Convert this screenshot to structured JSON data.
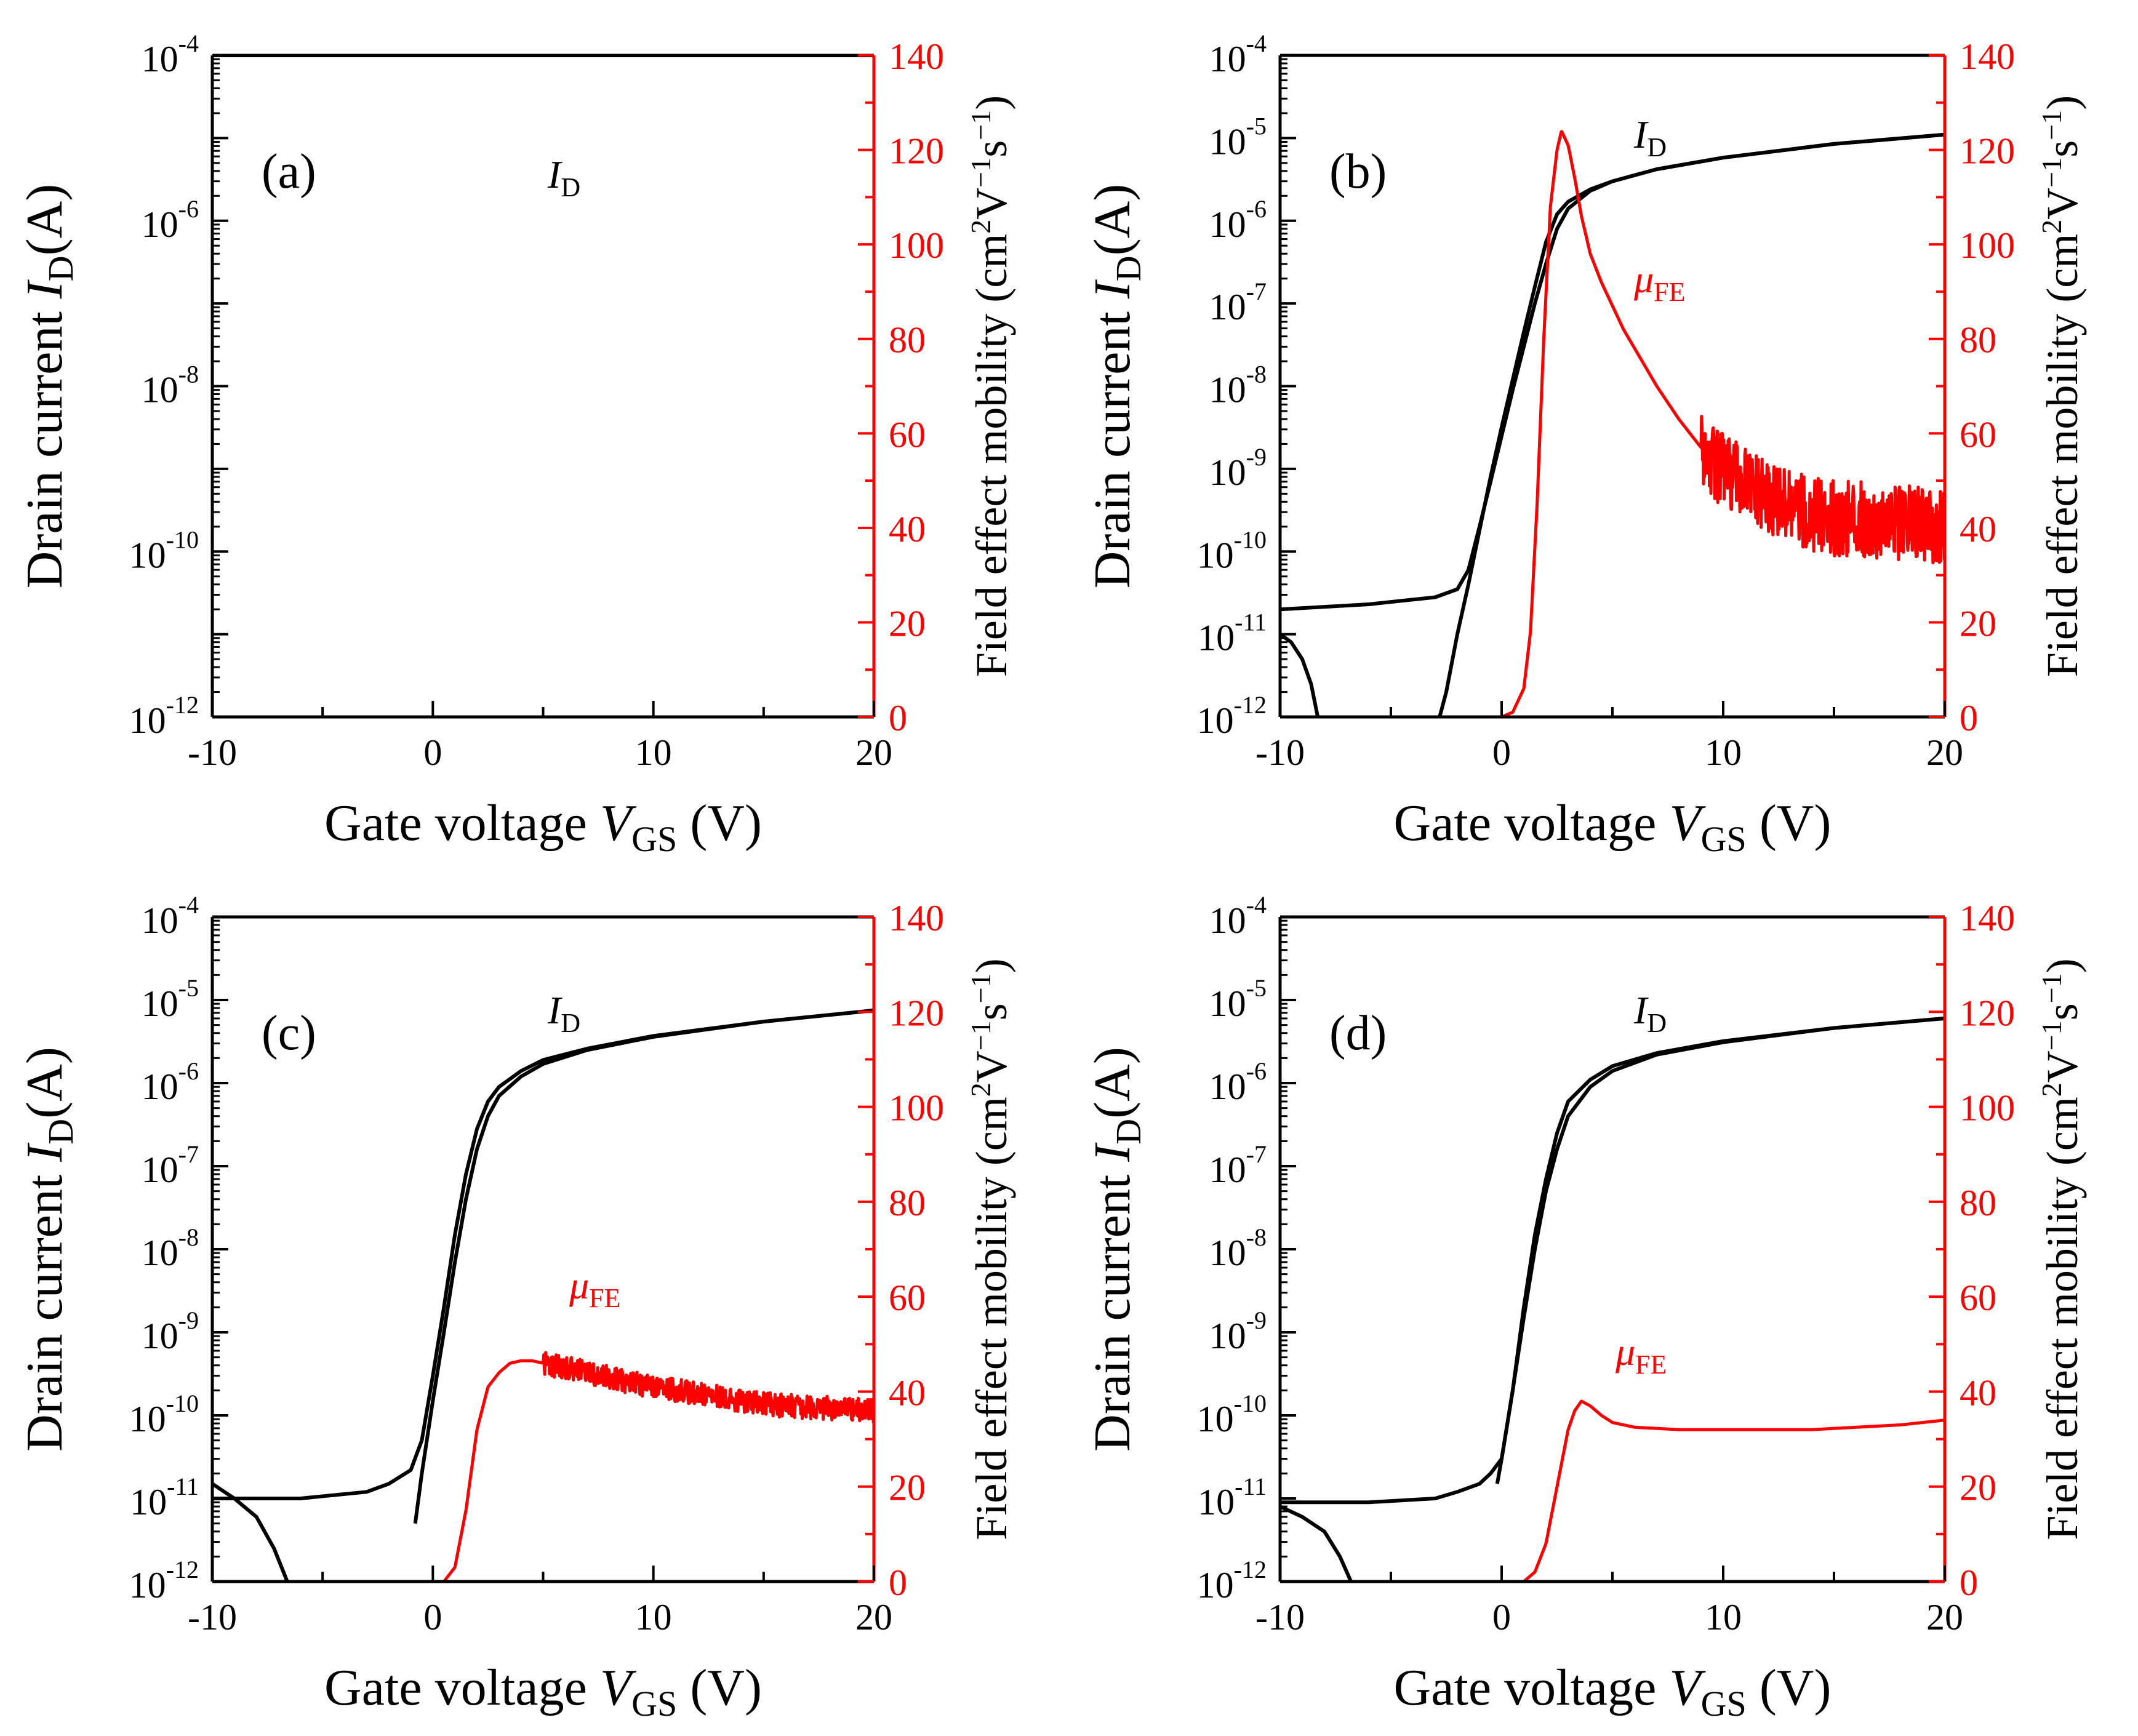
{
  "figure": {
    "panels": [
      {
        "label": "(a)",
        "xlabel_main": "Gate voltage ",
        "xlabel_var": "V",
        "xlabel_sub": "GS",
        "xlabel_unit": " (V)",
        "ylabel_main": "Drain current ",
        "ylabel_var": "I",
        "ylabel_sub": "D",
        "ylabel_unit": "(A)",
        "y2label_main": "Field effect mobility (cm",
        "y2label_rest": "s",
        "id_label_var": "I",
        "id_label_sub": "D",
        "mu_label_var": "",
        "mu_label_sub": ""
      },
      {
        "label": "(b)",
        "xlabel_main": "Gate voltage ",
        "xlabel_var": "V",
        "xlabel_sub": "GS",
        "xlabel_unit": " (V)",
        "ylabel_main": "Drain current ",
        "ylabel_var": "I",
        "ylabel_sub": "D",
        "ylabel_unit": "(A)",
        "y2label_main": "Field effect mobility (cm",
        "y2label_rest": "s",
        "id_label_var": "I",
        "id_label_sub": "D",
        "mu_label_var": "μ",
        "mu_label_sub": "FE"
      },
      {
        "label": "(c)",
        "xlabel_main": "Gate voltage ",
        "xlabel_var": "V",
        "xlabel_sub": "GS",
        "xlabel_unit": " (V)",
        "ylabel_main": "Drain current ",
        "ylabel_var": "I",
        "ylabel_sub": "D",
        "ylabel_unit": "(A)",
        "y2label_main": "Field effect mobility (cm",
        "y2label_rest": "s",
        "id_label_var": "I",
        "id_label_sub": "D",
        "mu_label_var": "μ",
        "mu_label_sub": "FE"
      },
      {
        "label": "(d)",
        "xlabel_main": "Gate voltage ",
        "xlabel_var": "V",
        "xlabel_sub": "GS",
        "xlabel_unit": " (V)",
        "ylabel_main": "Drain current ",
        "ylabel_var": "I",
        "ylabel_sub": "D",
        "ylabel_unit": "(A)",
        "y2label_main": "Field effect mobility (cm",
        "y2label_rest": "s",
        "id_label_var": "I",
        "id_label_sub": "D",
        "mu_label_var": "μ",
        "mu_label_sub": "FE"
      }
    ]
  },
  "chart_data": [
    {
      "panel": "(a)",
      "type": "line",
      "xlim": [
        -10,
        20
      ],
      "ylim_log_exponent": [
        -12,
        -4
      ],
      "y2lim": [
        0,
        140
      ],
      "x_ticks": [
        "-10",
        "0",
        "10",
        "20"
      ],
      "y_tick_exponents": [
        "-4",
        "-6",
        "-8",
        "-10",
        "-12"
      ],
      "y2_ticks": [
        "0",
        "20",
        "40",
        "60",
        "80",
        "100",
        "120",
        "140"
      ],
      "y_scale": "log",
      "colors": {
        "id": "#000000",
        "mu": "#ff0000"
      },
      "series": [
        {
          "key": "id_forward",
          "axis": "left",
          "x": [
            -10,
            20
          ],
          "y": [
            0.0002,
            0.0002
          ]
        },
        {
          "key": "id_reverse",
          "axis": "left",
          "x": [
            -10,
            20
          ],
          "y": [
            0.0001,
            0.0001
          ]
        }
      ]
    },
    {
      "panel": "(b)",
      "type": "line",
      "xlim": [
        -10,
        20
      ],
      "ylim_log_exponent": [
        -12,
        -4
      ],
      "y2lim": [
        0,
        140
      ],
      "x_ticks": [
        "-10",
        "0",
        "10",
        "20"
      ],
      "y_tick_exponents": [
        "-4",
        "-5",
        "-6",
        "-7",
        "-8",
        "-9",
        "-10",
        "-11",
        "-12"
      ],
      "y2_ticks": [
        "0",
        "20",
        "40",
        "60",
        "80",
        "100",
        "120",
        "140"
      ],
      "y_scale": "log",
      "colors": {
        "id": "#000000",
        "mu": "#ff0000"
      },
      "series": [
        {
          "key": "id_forward",
          "axis": "left",
          "x": [
            -10,
            -6,
            -3,
            -2,
            -1.5,
            -1,
            -0.5,
            0,
            0.5,
            1,
            1.5,
            2,
            2.5,
            3,
            4,
            5,
            7,
            10,
            15,
            20
          ],
          "y": [
            2e-11,
            2.3e-11,
            2.8e-11,
            3.5e-11,
            6e-11,
            2e-10,
            7e-10,
            2.5e-09,
            9e-09,
            3e-08,
            1e-07,
            3e-07,
            8e-07,
            1.4e-06,
            2.3e-06,
            3e-06,
            4.2e-06,
            5.8e-06,
            8.5e-06,
            1.1e-05
          ]
        },
        {
          "key": "id_reverse",
          "axis": "left",
          "x": [
            20,
            15,
            10,
            7,
            5,
            4,
            3,
            2.5,
            2,
            1.5,
            1,
            0.5,
            0,
            -0.5,
            -1,
            -1.5,
            -2,
            -2.5,
            -2.8
          ],
          "y": [
            1.1e-05,
            8.5e-06,
            5.8e-06,
            4.2e-06,
            3e-06,
            2.4e-06,
            1.7e-06,
            1.2e-06,
            5.5e-07,
            1.6e-07,
            4.5e-08,
            1.2e-08,
            3.2e-09,
            8e-10,
            1.8e-10,
            4e-11,
            1e-11,
            2e-12,
            1e-12
          ]
        },
        {
          "key": "id_leak",
          "axis": "left",
          "x": [
            -10,
            -9.5,
            -9,
            -8.6,
            -8.3
          ],
          "y": [
            1e-11,
            8e-12,
            5e-12,
            2.5e-12,
            1e-12
          ]
        },
        {
          "key": "mu",
          "axis": "right",
          "x": [
            0,
            0.5,
            1,
            1.3,
            1.6,
            1.9,
            2.2,
            2.5,
            2.7,
            3,
            3.3,
            3.6,
            4,
            4.5,
            5,
            5.5,
            6,
            7,
            8,
            9,
            10,
            11,
            12,
            13,
            14,
            15,
            16,
            17,
            18,
            19,
            20
          ],
          "y": [
            0,
            1,
            6,
            18,
            45,
            80,
            108,
            120,
            124,
            121,
            114,
            106,
            98,
            92,
            87,
            82,
            78,
            70,
            63,
            57,
            52,
            49,
            46,
            44,
            43,
            42,
            42,
            41,
            41,
            41,
            40
          ],
          "noise_from_x": 9,
          "noise_amplitude": 8
        }
      ]
    },
    {
      "panel": "(c)",
      "type": "line",
      "xlim": [
        -10,
        20
      ],
      "ylim_log_exponent": [
        -12,
        -4
      ],
      "y2lim": [
        0,
        140
      ],
      "x_ticks": [
        "-10",
        "0",
        "10",
        "20"
      ],
      "y_tick_exponents": [
        "-4",
        "-5",
        "-6",
        "-7",
        "-8",
        "-9",
        "-10",
        "-11",
        "-12"
      ],
      "y2_ticks": [
        "0",
        "20",
        "40",
        "60",
        "80",
        "100",
        "120",
        "140"
      ],
      "y_scale": "log",
      "colors": {
        "id": "#000000",
        "mu": "#ff0000"
      },
      "series": [
        {
          "key": "id_forward",
          "axis": "left",
          "x": [
            -10,
            -6,
            -3,
            -2,
            -1,
            -0.5,
            0,
            0.5,
            1,
            1.5,
            2,
            2.5,
            3,
            4,
            5,
            7,
            10,
            15,
            20
          ],
          "y": [
            1e-11,
            1e-11,
            1.2e-11,
            1.5e-11,
            2.2e-11,
            5e-11,
            3e-10,
            2e-09,
            1.5e-08,
            8e-08,
            2.8e-07,
            6e-07,
            9e-07,
            1.4e-06,
            1.9e-06,
            2.6e-06,
            3.7e-06,
            5.5e-06,
            7.5e-06
          ]
        },
        {
          "key": "id_reverse",
          "axis": "left",
          "x": [
            20,
            15,
            10,
            7,
            5,
            4,
            3,
            2.5,
            2,
            1.5,
            1,
            0.5,
            0,
            -0.5,
            -0.8
          ],
          "y": [
            7.5e-06,
            5.5e-06,
            3.6e-06,
            2.5e-06,
            1.7e-06,
            1.2e-06,
            7e-07,
            4e-07,
            1.6e-07,
            4e-08,
            7e-09,
            1e-09,
            1.5e-10,
            2e-11,
            5e-12
          ]
        },
        {
          "key": "id_leak",
          "axis": "left",
          "x": [
            -10,
            -9,
            -8,
            -7.2,
            -6.6
          ],
          "y": [
            1.5e-11,
            1e-11,
            6e-12,
            2.5e-12,
            1e-12
          ]
        },
        {
          "key": "mu",
          "axis": "right",
          "x": [
            0.5,
            1,
            1.5,
            2,
            2.5,
            3,
            3.5,
            4,
            4.5,
            5,
            6,
            8,
            10,
            12,
            14,
            16,
            18,
            20
          ],
          "y": [
            0,
            3,
            15,
            32,
            41,
            44,
            46,
            46.5,
            46.5,
            46,
            45,
            43,
            41,
            39.5,
            38,
            37,
            36.5,
            36
          ],
          "noise_from_x": 5,
          "noise_amplitude": 2.5
        }
      ]
    },
    {
      "panel": "(d)",
      "type": "line",
      "xlim": [
        -10,
        20
      ],
      "ylim_log_exponent": [
        -12,
        -4
      ],
      "y2lim": [
        0,
        140
      ],
      "x_ticks": [
        "-10",
        "0",
        "10",
        "20"
      ],
      "y_tick_exponents": [
        "-4",
        "-5",
        "-6",
        "-7",
        "-8",
        "-9",
        "-10",
        "-11",
        "-12"
      ],
      "y2_ticks": [
        "0",
        "20",
        "40",
        "60",
        "80",
        "100",
        "120",
        "140"
      ],
      "y_scale": "log",
      "colors": {
        "id": "#000000",
        "mu": "#ff0000"
      },
      "series": [
        {
          "key": "id_forward",
          "axis": "left",
          "x": [
            -10,
            -6,
            -3,
            -2,
            -1,
            -0.5,
            0,
            0.5,
            1,
            1.5,
            2,
            2.5,
            3,
            4,
            5,
            7,
            10,
            15,
            20
          ],
          "y": [
            9e-12,
            9e-12,
            1e-11,
            1.2e-11,
            1.5e-11,
            2e-11,
            3e-11,
            2e-10,
            2e-09,
            1.5e-08,
            7e-08,
            2.5e-07,
            6e-07,
            1.1e-06,
            1.6e-06,
            2.3e-06,
            3.2e-06,
            4.6e-06,
            6e-06
          ]
        },
        {
          "key": "id_reverse",
          "axis": "left",
          "x": [
            20,
            15,
            10,
            7,
            5,
            4,
            3,
            2.5,
            2,
            1.5,
            1,
            0.5,
            0,
            -0.2
          ],
          "y": [
            6e-06,
            4.6e-06,
            3.1e-06,
            2.2e-06,
            1.4e-06,
            9e-07,
            4e-07,
            1.6e-07,
            5e-08,
            1e-08,
            1.5e-09,
            2e-10,
            3e-11,
            1.5e-11
          ]
        },
        {
          "key": "id_leak",
          "axis": "left",
          "x": [
            -10,
            -9,
            -8,
            -7.3,
            -6.8
          ],
          "y": [
            8e-12,
            6e-12,
            4e-12,
            2e-12,
            1e-12
          ]
        },
        {
          "key": "mu",
          "axis": "right",
          "x": [
            1,
            1.5,
            2,
            2.5,
            3,
            3.3,
            3.6,
            4,
            4.5,
            5,
            6,
            8,
            10,
            12,
            14,
            16,
            18,
            20
          ],
          "y": [
            0,
            2,
            8,
            20,
            32,
            36,
            38,
            37,
            35,
            33.5,
            32.5,
            32,
            32,
            32,
            32,
            32.5,
            33,
            34
          ],
          "noise_from_x": 100,
          "noise_amplitude": 0
        }
      ]
    }
  ]
}
